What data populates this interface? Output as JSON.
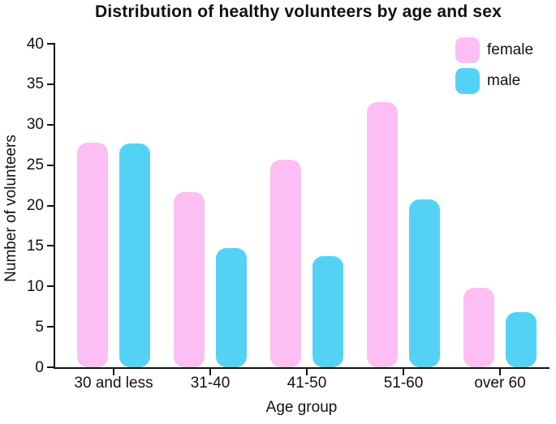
{
  "chart_data": {
    "type": "bar",
    "title": "Distribution of healthy volunteers by age and sex",
    "xlabel": "Age group",
    "ylabel": "Number of volunteers",
    "categories": [
      "30 and less",
      "31-40",
      "41-50",
      "51-60",
      "over 60"
    ],
    "series": [
      {
        "name": "female",
        "color": "#fcbef3",
        "values": [
          27.8,
          21.7,
          25.7,
          32.8,
          9.8
        ]
      },
      {
        "name": "male",
        "color": "#54d2f6",
        "values": [
          27.7,
          14.7,
          13.7,
          20.8,
          6.8
        ]
      }
    ],
    "ylim": [
      0,
      40
    ],
    "yticks": [
      0,
      5,
      10,
      15,
      20,
      25,
      30,
      35,
      40
    ],
    "legend": {
      "position": "top-right"
    },
    "grid": false,
    "axis_color": "#111111"
  }
}
